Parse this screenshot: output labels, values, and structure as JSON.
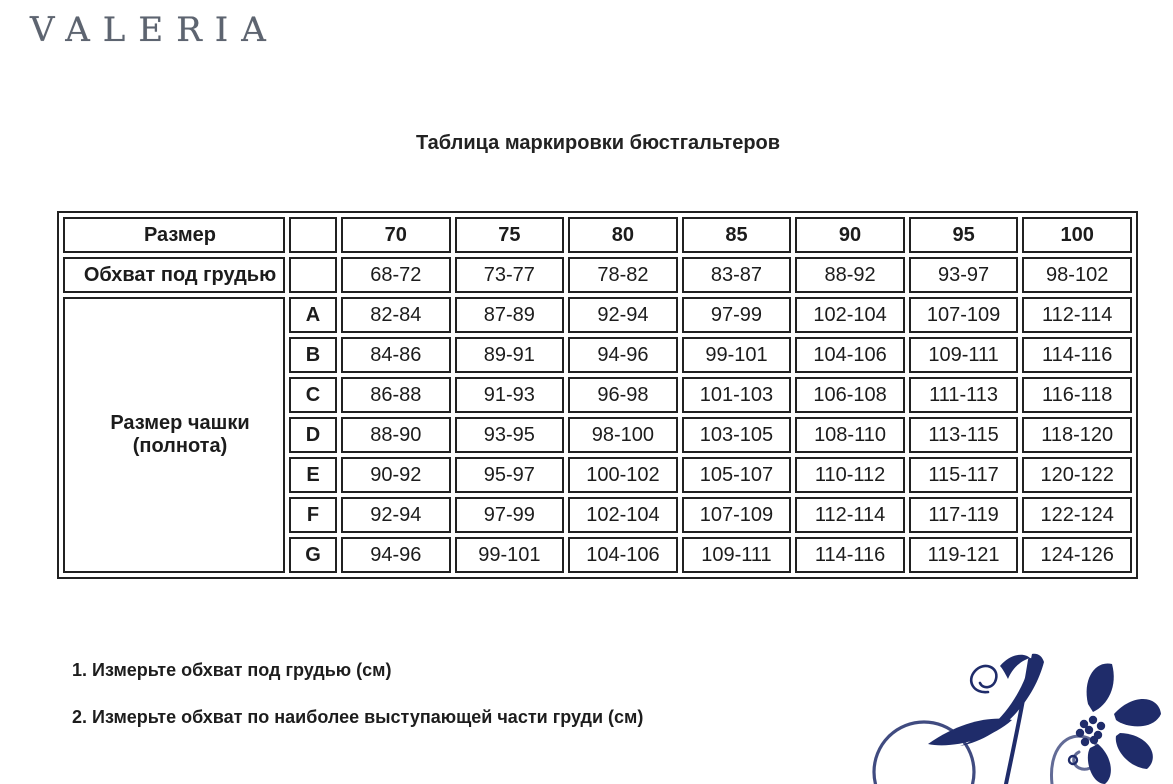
{
  "brand": "VALERIA",
  "title": "Таблица маркировки бюстгальтеров",
  "table": {
    "size_row": {
      "label": "Размер",
      "values": [
        "70",
        "75",
        "80",
        "85",
        "90",
        "95",
        "100"
      ]
    },
    "underbust_row": {
      "label": "Обхват под грудью",
      "values": [
        "68-72",
        "73-77",
        "78-82",
        "83-87",
        "88-92",
        "93-97",
        "98-102"
      ]
    },
    "cup_label": "Размер чашки (полнота)",
    "cup_rows": [
      {
        "letter": "A",
        "values": [
          "82-84",
          "87-89",
          "92-94",
          "97-99",
          "102-104",
          "107-109",
          "112-114"
        ]
      },
      {
        "letter": "B",
        "values": [
          "84-86",
          "89-91",
          "94-96",
          "99-101",
          "104-106",
          "109-111",
          "114-116"
        ]
      },
      {
        "letter": "C",
        "values": [
          "86-88",
          "91-93",
          "96-98",
          "101-103",
          "106-108",
          "111-113",
          "116-118"
        ]
      },
      {
        "letter": "D",
        "values": [
          "88-90",
          "93-95",
          "98-100",
          "103-105",
          "108-110",
          "113-115",
          "118-120"
        ]
      },
      {
        "letter": "E",
        "values": [
          "90-92",
          "95-97",
          "100-102",
          "105-107",
          "110-112",
          "115-117",
          "120-122"
        ]
      },
      {
        "letter": "F",
        "values": [
          "92-94",
          "97-99",
          "102-104",
          "107-109",
          "112-114",
          "117-119",
          "122-124"
        ]
      },
      {
        "letter": "G",
        "values": [
          "94-96",
          "99-101",
          "104-106",
          "109-111",
          "114-116",
          "119-121",
          "124-126"
        ]
      }
    ]
  },
  "instructions": [
    "1. Измерьте обхват под грудью (см)",
    "2. Измерьте обхват по наиболее выступающей части груди (см)"
  ],
  "icons": {
    "ornament": "floral-flourish-ornament"
  },
  "colors": {
    "peach": "#fbe4c1",
    "lavender": "#d4d1e3",
    "border": "#212121",
    "text": "#1c1c1c",
    "logo_gray": "#5d6470",
    "ornament_navy": "#1f2c6a"
  }
}
